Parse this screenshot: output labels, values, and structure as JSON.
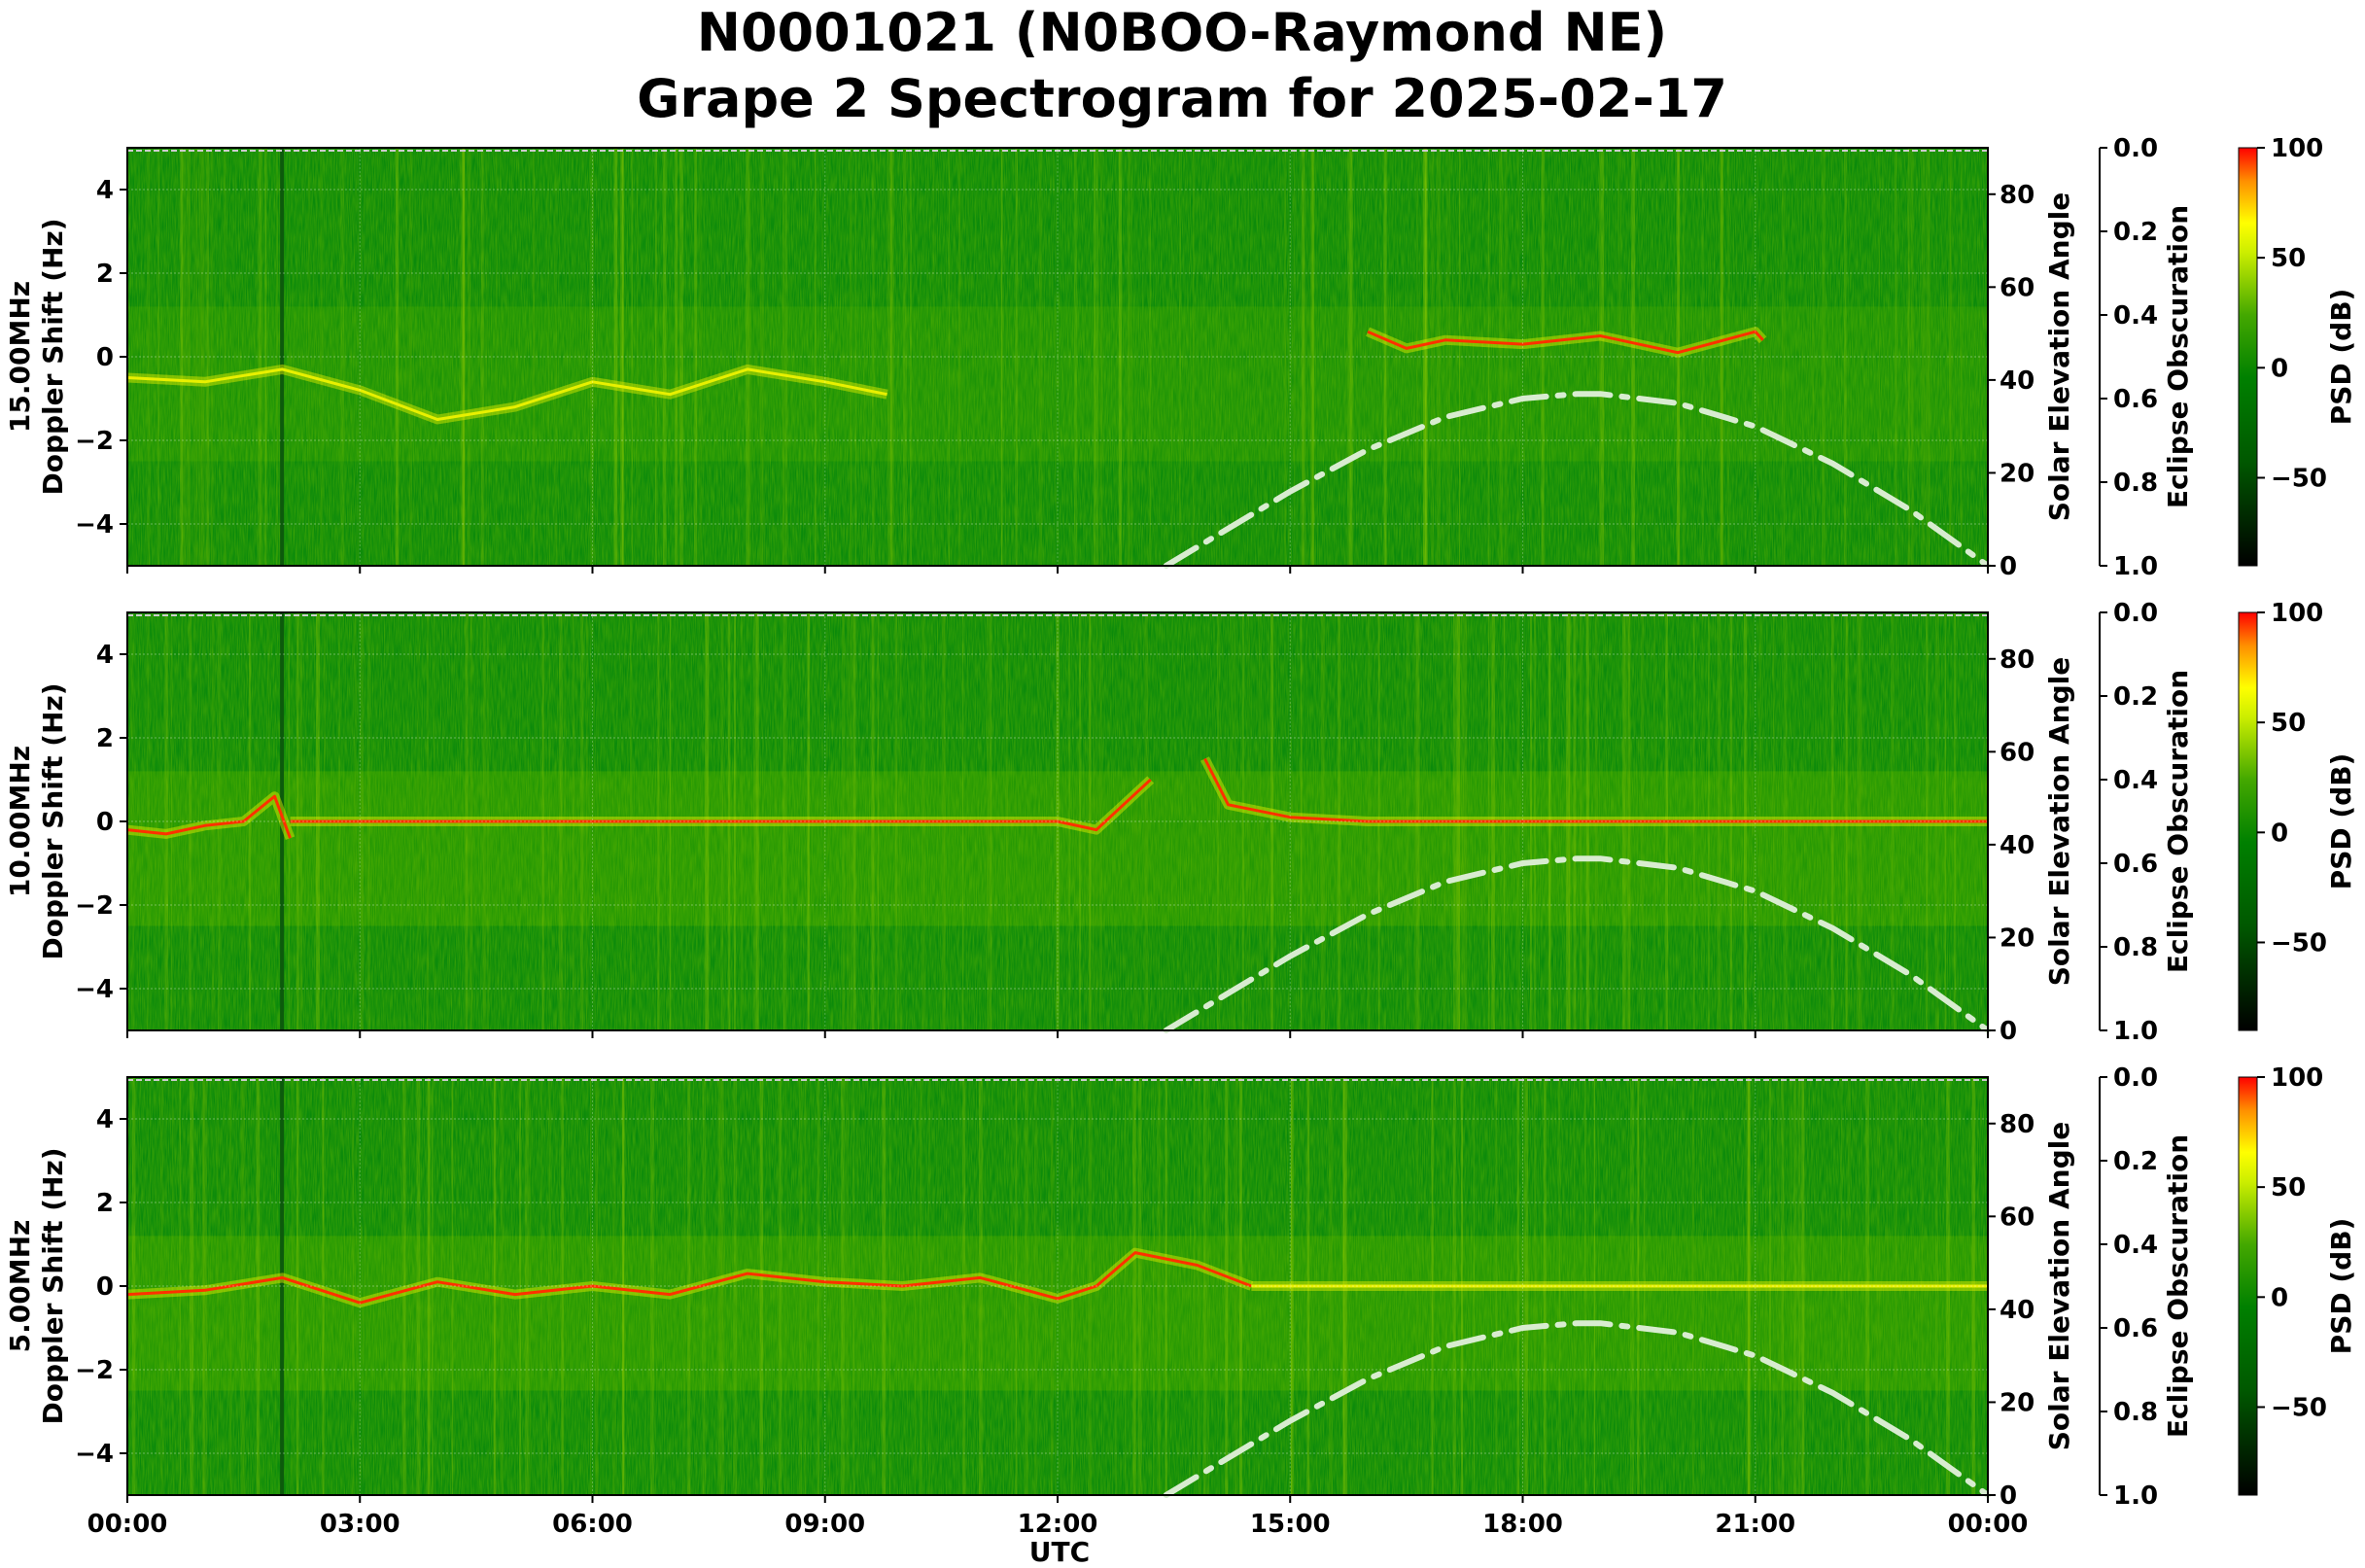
{
  "title_line1": "N0001021 (N0BOO-Raymond NE)",
  "title_line2": "Grape 2 Spectrogram for 2025-02-17",
  "xlabel": "UTC",
  "x_tick_labels": [
    "00:00",
    "03:00",
    "06:00",
    "09:00",
    "12:00",
    "15:00",
    "18:00",
    "21:00",
    "00:00"
  ],
  "colors": {
    "low": "#000000",
    "mid_low": "#007a00",
    "mid": "#2f9a00",
    "high": "#ffff00",
    "max": "#ff0000",
    "sun_curve": "#d8ecd0"
  },
  "chart_data": [
    {
      "type": "heatmap",
      "ylabel_line1": "15.00MHz",
      "ylabel_line2": "Doppler Shift (Hz)",
      "ylim": [
        -5,
        5
      ],
      "y_ticks": [
        -4,
        -2,
        0,
        2,
        4
      ],
      "xlim_hours": [
        0,
        24
      ],
      "solar_elevation": {
        "label": "Solar Elevation Angle",
        "ylim": [
          0,
          90
        ],
        "ticks": [
          0,
          20,
          40,
          60,
          80
        ],
        "hours": [
          13.4,
          14,
          15,
          16,
          17,
          18,
          18.7,
          19,
          20,
          21,
          22,
          23,
          24
        ],
        "values": [
          0,
          6,
          16,
          25,
          32,
          36,
          37,
          37,
          35,
          30,
          22,
          12,
          0
        ]
      },
      "eclipse_obscuration": {
        "label": "Eclipse Obscuration",
        "ylim": [
          1.0,
          0.0
        ],
        "ticks": [
          0.0,
          0.2,
          0.4,
          0.6,
          0.8,
          1.0
        ]
      },
      "colorbar": {
        "label": "PSD (dB)",
        "range": [
          -90,
          100
        ],
        "ticks": [
          -50,
          0,
          50,
          100
        ]
      },
      "traces": [
        {
          "hours": [
            0,
            1,
            2,
            3,
            4,
            5,
            6,
            7,
            8,
            9,
            9.8
          ],
          "doppler": [
            -0.5,
            -0.6,
            -0.3,
            -0.8,
            -1.5,
            -1.2,
            -0.6,
            -0.9,
            -0.3,
            -0.6,
            -0.9
          ],
          "strength": "yellow"
        },
        {
          "hours": [
            16,
            16.5,
            17,
            18,
            19,
            20,
            21,
            21.1
          ],
          "doppler": [
            0.6,
            0.2,
            0.4,
            0.3,
            0.5,
            0.1,
            0.6,
            0.4
          ],
          "strength": "red"
        }
      ]
    },
    {
      "type": "heatmap",
      "ylabel_line1": "10.00MHz",
      "ylabel_line2": "Doppler Shift (Hz)",
      "ylim": [
        -5,
        5
      ],
      "y_ticks": [
        -4,
        -2,
        0,
        2,
        4
      ],
      "xlim_hours": [
        0,
        24
      ],
      "solar_elevation": {
        "label": "Solar Elevation Angle",
        "ylim": [
          0,
          90
        ],
        "ticks": [
          0,
          20,
          40,
          60,
          80
        ],
        "hours": [
          13.4,
          14,
          15,
          16,
          17,
          18,
          18.7,
          19,
          20,
          21,
          22,
          23,
          24
        ],
        "values": [
          0,
          6,
          16,
          25,
          32,
          36,
          37,
          37,
          35,
          30,
          22,
          12,
          0
        ]
      },
      "eclipse_obscuration": {
        "label": "Eclipse Obscuration",
        "ylim": [
          1.0,
          0.0
        ],
        "ticks": [
          0.0,
          0.2,
          0.4,
          0.6,
          0.8,
          1.0
        ]
      },
      "colorbar": {
        "label": "PSD (dB)",
        "range": [
          -90,
          100
        ],
        "ticks": [
          -50,
          0,
          50,
          100
        ]
      },
      "traces": [
        {
          "hours": [
            0,
            0.5,
            1,
            1.5,
            1.9,
            2.1
          ],
          "doppler": [
            -0.2,
            -0.3,
            -0.1,
            0.0,
            0.6,
            -0.4
          ],
          "strength": "red"
        },
        {
          "hours": [
            2.1,
            4,
            6,
            8,
            10,
            12,
            12.5,
            13.2
          ],
          "doppler": [
            0.0,
            0.0,
            0.0,
            0.0,
            0.0,
            0.0,
            -0.2,
            1.0
          ],
          "strength": "red"
        },
        {
          "hours": [
            13.9,
            14.2,
            15,
            16,
            18,
            20,
            22,
            24
          ],
          "doppler": [
            1.5,
            0.4,
            0.1,
            0.0,
            0.0,
            0.0,
            0.0,
            0.0
          ],
          "strength": "red"
        }
      ]
    },
    {
      "type": "heatmap",
      "ylabel_line1": "5.00MHz",
      "ylabel_line2": "Doppler Shift (Hz)",
      "ylim": [
        -5,
        5
      ],
      "y_ticks": [
        -4,
        -2,
        0,
        2,
        4
      ],
      "xlim_hours": [
        0,
        24
      ],
      "solar_elevation": {
        "label": "Solar Elevation Angle",
        "ylim": [
          0,
          90
        ],
        "ticks": [
          0,
          20,
          40,
          60,
          80
        ],
        "hours": [
          13.4,
          14,
          15,
          16,
          17,
          18,
          18.7,
          19,
          20,
          21,
          22,
          23,
          24
        ],
        "values": [
          0,
          6,
          16,
          25,
          32,
          36,
          37,
          37,
          35,
          30,
          22,
          12,
          0
        ]
      },
      "eclipse_obscuration": {
        "label": "Eclipse Obscuration",
        "ylim": [
          1.0,
          0.0
        ],
        "ticks": [
          0.0,
          0.2,
          0.4,
          0.6,
          0.8,
          1.0
        ]
      },
      "colorbar": {
        "label": "PSD (dB)",
        "range": [
          -90,
          100
        ],
        "ticks": [
          -50,
          0,
          50,
          100
        ]
      },
      "traces": [
        {
          "hours": [
            0,
            1,
            2,
            3,
            4,
            5,
            6,
            7,
            8,
            9,
            10,
            11,
            12,
            12.5,
            13,
            13.8,
            14.5
          ],
          "doppler": [
            -0.2,
            -0.1,
            0.2,
            -0.4,
            0.1,
            -0.2,
            0.0,
            -0.2,
            0.3,
            0.1,
            0.0,
            0.2,
            -0.3,
            0.0,
            0.8,
            0.5,
            0.0
          ],
          "strength": "red"
        },
        {
          "hours": [
            14.5,
            16,
            18,
            20,
            22,
            24
          ],
          "doppler": [
            0.0,
            0.0,
            0.0,
            0.0,
            0.0,
            0.0
          ],
          "strength": "yellow"
        }
      ]
    }
  ]
}
